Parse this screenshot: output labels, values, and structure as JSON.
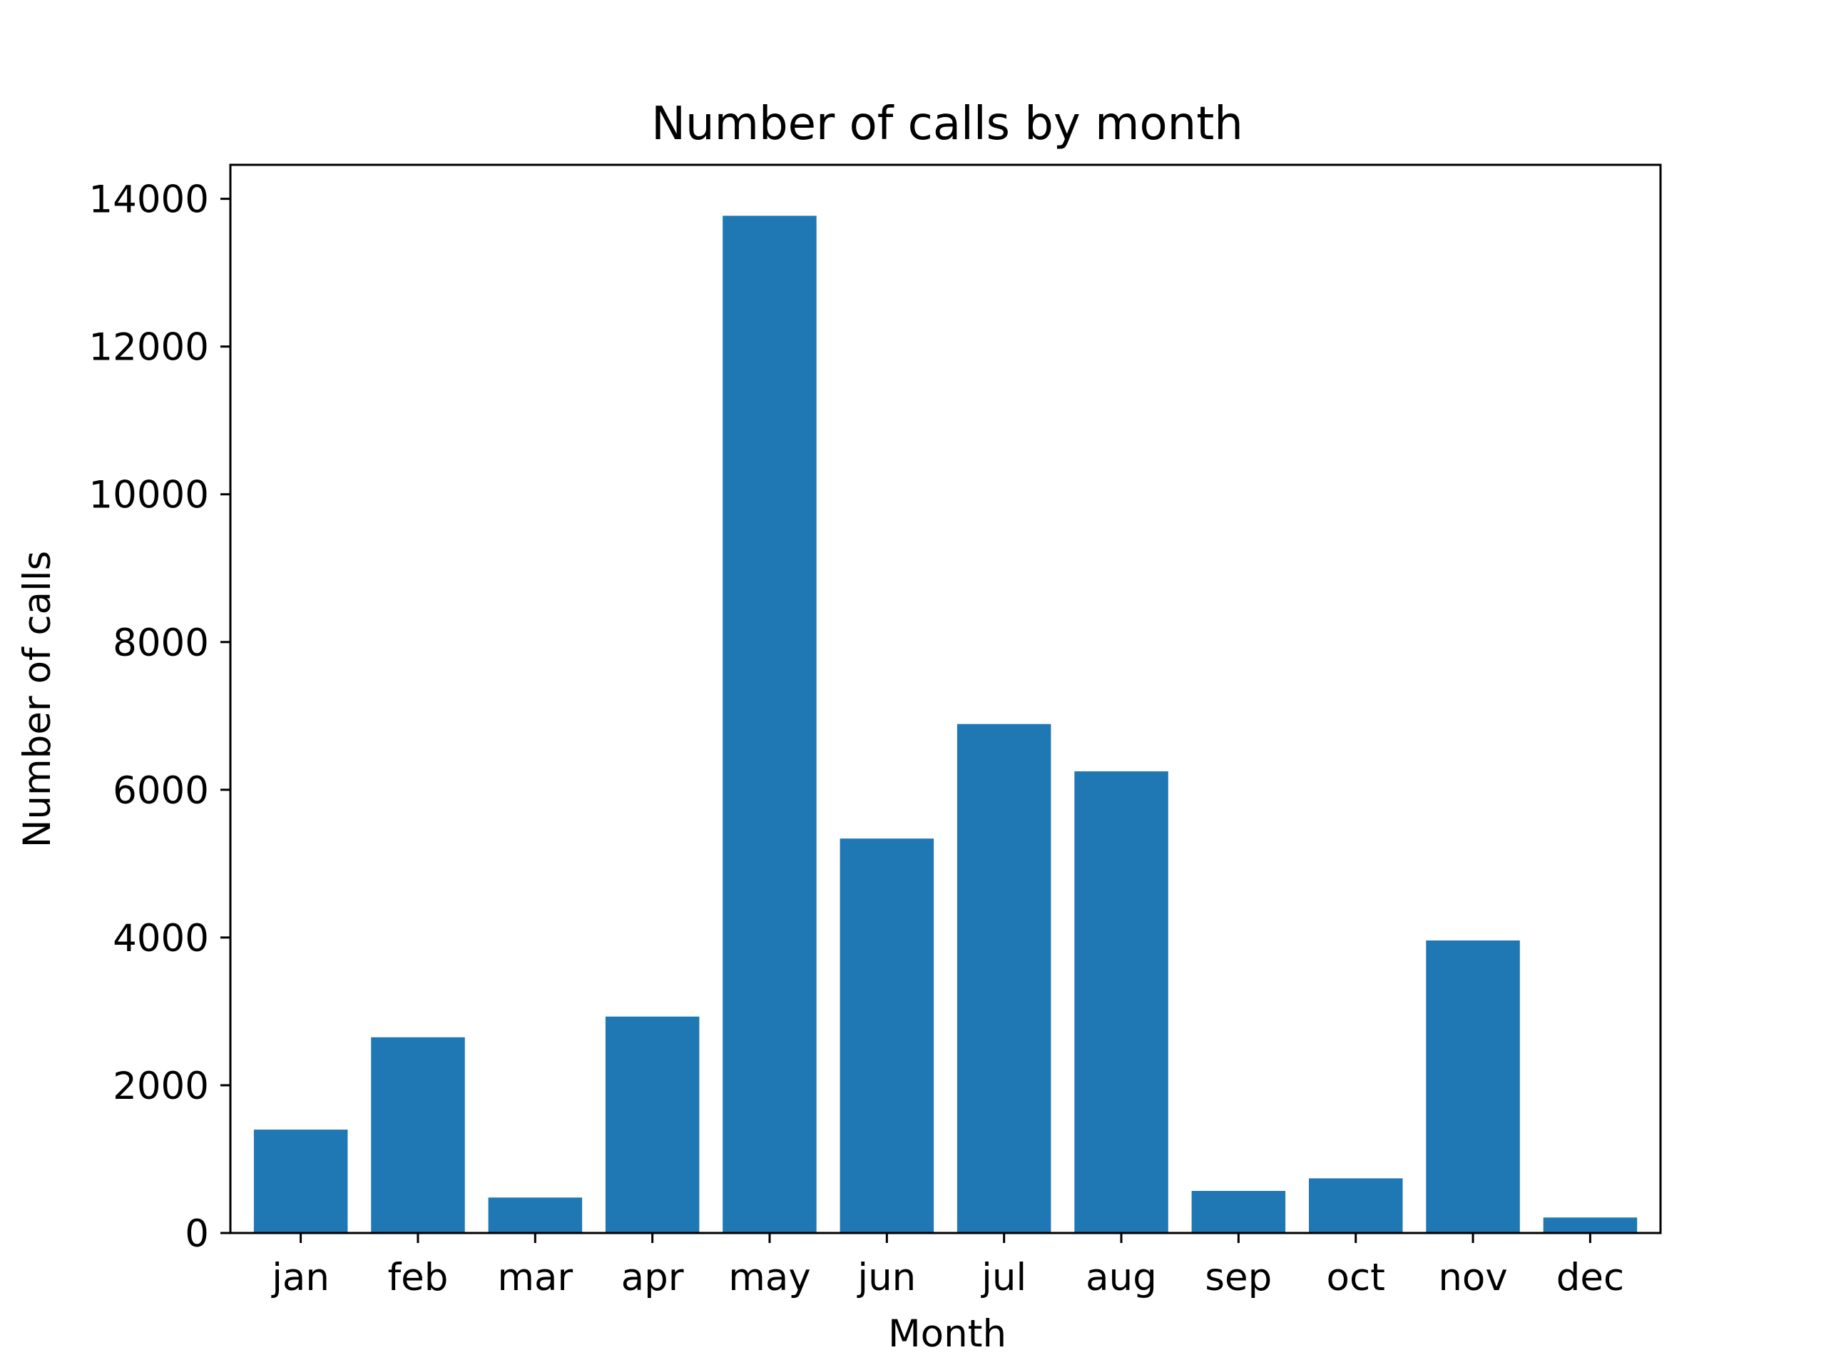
{
  "chart_data": {
    "type": "bar",
    "title": "Number of calls by month",
    "xlabel": "Month",
    "ylabel": "Number of calls",
    "categories": [
      "jan",
      "feb",
      "mar",
      "apr",
      "may",
      "jun",
      "jul",
      "aug",
      "sep",
      "oct",
      "nov",
      "dec"
    ],
    "values": [
      1400,
      2650,
      480,
      2930,
      13770,
      5340,
      6890,
      6250,
      570,
      740,
      3960,
      210
    ],
    "ylim": [
      0,
      14460
    ],
    "yticks": [
      0,
      2000,
      4000,
      6000,
      8000,
      10000,
      12000,
      14000
    ],
    "ytick_labels": [
      "0",
      "2000",
      "4000",
      "6000",
      "8000",
      "10000",
      "12000",
      "14000"
    ],
    "bar_color": "#1f77b4",
    "grid": false,
    "legend": false
  }
}
